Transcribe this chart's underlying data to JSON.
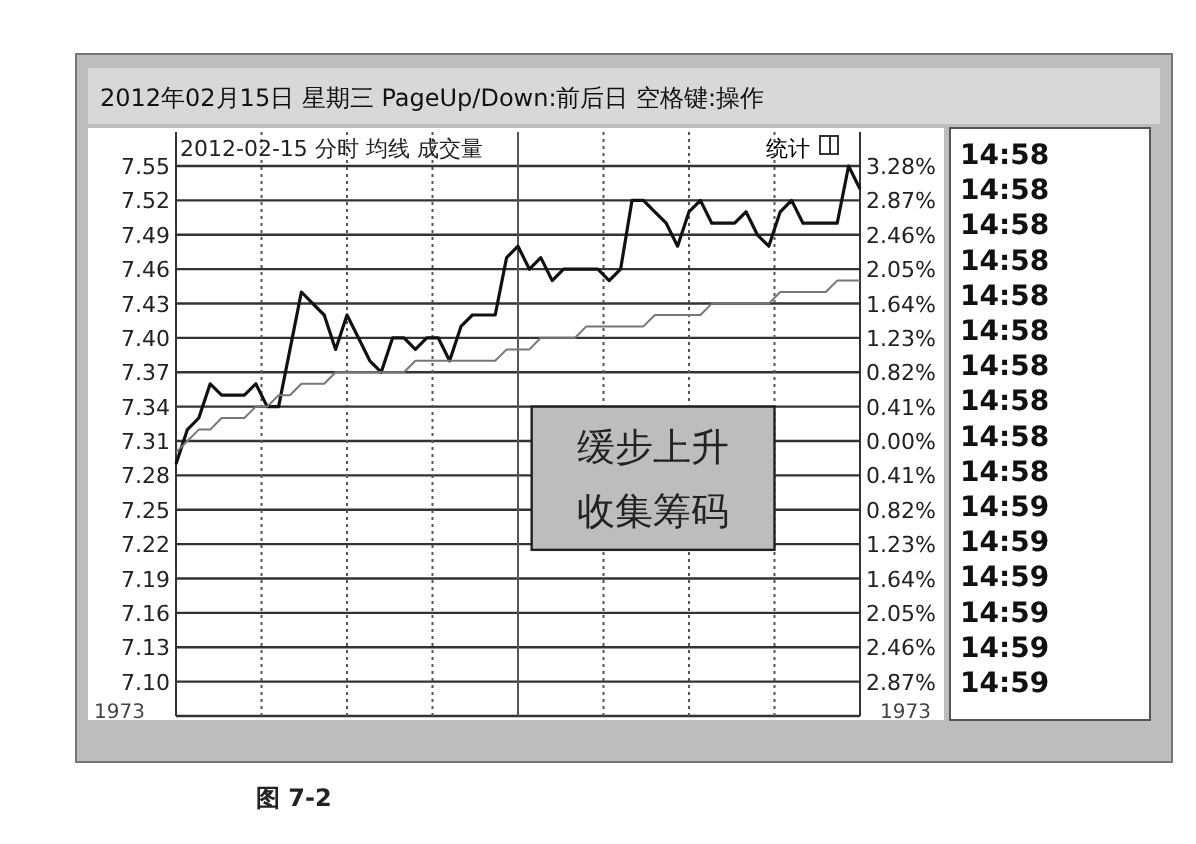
{
  "chart_data": [
    {
      "type": "line",
      "title": "2012年02月15日 星期三 PageUp/Down:前后日 空格键:操作",
      "subtitle": "2012-02-15 分时 均线 成交量",
      "categories": [
        null,
        null,
        null,
        null,
        null,
        null,
        null,
        null,
        null,
        null,
        null,
        null,
        null,
        null,
        null,
        null,
        null,
        null,
        null,
        null,
        null,
        null,
        null,
        null,
        null,
        null,
        null,
        null,
        null,
        null,
        null,
        null,
        null,
        null,
        null,
        null,
        null,
        null,
        null,
        null,
        null,
        null,
        null,
        null,
        null,
        null,
        null,
        null,
        null,
        null,
        null,
        null,
        null,
        null,
        null,
        null,
        null,
        null,
        null,
        null,
        null
      ],
      "ylim": [
        7.07,
        7.55
      ],
      "yticks": [
        7.55,
        7.52,
        7.49,
        7.46,
        7.43,
        {
          "value": 7.4,
          "label": "7.40"
        },
        7.37,
        7.34,
        7.31,
        7.28,
        7.25,
        7.22,
        7.19,
        7.16,
        7.13,
        {
          "value": 7.1,
          "label": "7.10"
        }
      ],
      "y2lim": [
        -3.28,
        3.28
      ],
      "y2ticks": [
        {
          "value": 3.28,
          "label": "3.28%"
        },
        {
          "value": 2.87,
          "label": "2.87%"
        },
        {
          "value": 2.46,
          "label": "2.46%"
        },
        {
          "value": 2.05,
          "label": "2.05%"
        },
        {
          "value": 1.64,
          "label": "1.64%"
        },
        {
          "value": 1.23,
          "label": "1.23%"
        },
        {
          "value": 0.82,
          "label": "0.82%"
        },
        {
          "value": 0.41,
          "label": "0.41%"
        },
        {
          "value": 0,
          "label": "0.00%"
        },
        {
          "value": -0.41,
          "label": "0.41%"
        },
        {
          "value": -0.82,
          "label": "0.82%"
        },
        {
          "value": -1.23,
          "label": "1.23%"
        },
        {
          "value": -1.64,
          "label": "1.64%"
        },
        {
          "value": -2.05,
          "label": "2.05%"
        },
        {
          "value": -2.46,
          "label": "2.46%"
        },
        {
          "value": -2.87,
          "label": "2.87%"
        }
      ],
      "grid": true,
      "line_style": "solid",
      "marker": "none",
      "series": [
        {
          "color": "#111111",
          "values": [
            7.29,
            7.32,
            7.33,
            7.36,
            7.35,
            7.35,
            7.35,
            7.36,
            7.34,
            7.34,
            7.39,
            7.44,
            7.43,
            7.42,
            7.39,
            7.42,
            7.4,
            7.38,
            7.37,
            7.4,
            7.4,
            7.39,
            7.4,
            7.4,
            7.38,
            7.41,
            7.42,
            7.42,
            7.42,
            7.47,
            7.48,
            7.46,
            7.47,
            7.45,
            7.46,
            7.46,
            7.46,
            7.46,
            7.45,
            7.46,
            7.52,
            7.52,
            7.51,
            7.5,
            7.48,
            7.51,
            7.52,
            7.5,
            7.5,
            7.5,
            7.51,
            7.49,
            7.48,
            7.51,
            7.52,
            7.5,
            7.5,
            7.5,
            7.5,
            7.55,
            7.53
          ]
        },
        {
          "color": "#777777",
          "values": [
            7.3,
            7.31,
            7.32,
            7.32,
            7.33,
            7.33,
            7.33,
            7.34,
            7.34,
            7.35,
            7.35,
            7.36,
            7.36,
            7.36,
            7.37,
            7.37,
            7.37,
            7.37,
            7.37,
            7.37,
            7.37,
            7.38,
            7.38,
            7.38,
            7.38,
            7.38,
            7.38,
            7.38,
            7.38,
            7.39,
            7.39,
            7.39,
            7.4,
            7.4,
            7.4,
            7.4,
            7.41,
            7.41,
            7.41,
            7.41,
            7.41,
            7.41,
            7.42,
            7.42,
            7.42,
            7.42,
            7.42,
            7.43,
            7.43,
            7.43,
            7.43,
            7.43,
            7.43,
            7.44,
            7.44,
            7.44,
            7.44,
            7.44,
            7.45,
            7.45,
            7.45
          ]
        }
      ],
      "annotations": [
        "统计",
        "缓步上升收集筹码",
        "图 7-2",
        "1973",
        "1973"
      ]
    },
    {
      "type": "other",
      "annotations": [
        "14:58",
        "14:58",
        "14:58",
        "14:58",
        "14:58",
        "14:58",
        "14:58",
        "14:58",
        "14:58",
        "14:58",
        "14:59",
        "14:59",
        "14:59",
        "14:59",
        "14:59",
        "14:59"
      ]
    }
  ]
}
